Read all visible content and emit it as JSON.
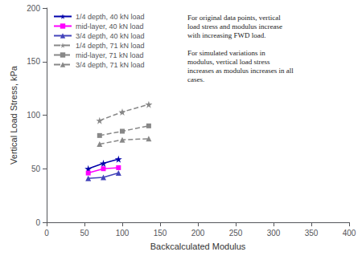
{
  "chart_data": {
    "type": "line",
    "xlabel": "Backcalculated Modulus",
    "ylabel": "Vertical Load Stress, kPa",
    "xlim": [
      0,
      400
    ],
    "ylim": [
      0,
      200
    ],
    "xticks": [
      0,
      50,
      100,
      150,
      200,
      250,
      300,
      350,
      400
    ],
    "yticks": [
      0,
      50,
      100,
      150,
      200
    ],
    "grid": false,
    "legend": "upper left",
    "annotation": "For original data points, vertical\nload stress and modulus increase\nwith increasing FWD load.\n\nFor simulated variations in\nmodulus, vertical load stress\nincreases as modulus increases in all\ncases.",
    "series": [
      {
        "name": "1/4 depth, 40 kN load",
        "color": "#0000aa",
        "marker": "star",
        "line_style": "solid",
        "x": [
          55,
          75,
          95
        ],
        "values": [
          50,
          55,
          59
        ]
      },
      {
        "name": "mid-layer, 40 kN load",
        "color": "#ff00ff",
        "marker": "square",
        "line_style": "solid",
        "x": [
          55,
          75,
          95
        ],
        "values": [
          46,
          50,
          51
        ]
      },
      {
        "name": "3/4 depth, 40 kN load",
        "color": "#4444bb",
        "marker": "triangle",
        "line_style": "solid",
        "x": [
          55,
          75,
          95
        ],
        "values": [
          41,
          42,
          46
        ]
      },
      {
        "name": "1/4 depth, 71 kN load",
        "color": "#888888",
        "marker": "star",
        "line_style": "dashed",
        "x": [
          70,
          100,
          135
        ],
        "values": [
          95,
          103,
          110
        ]
      },
      {
        "name": "mid-layer, 71 kN load",
        "color": "#888888",
        "marker": "square",
        "line_style": "dashed",
        "x": [
          70,
          100,
          135
        ],
        "values": [
          81,
          85,
          90
        ]
      },
      {
        "name": "3/4 depth, 71 kN load",
        "color": "#888888",
        "marker": "triangle",
        "line_style": "dashed",
        "x": [
          70,
          100,
          135
        ],
        "values": [
          73,
          77,
          78
        ]
      }
    ]
  }
}
